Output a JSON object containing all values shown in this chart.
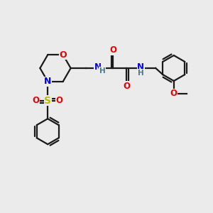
{
  "background_color": "#ebebeb",
  "bond_color": "#1a1a1a",
  "N_color": "#0000ee",
  "O_color": "#ee0000",
  "S_color": "#bbbb00",
  "H_color": "#4a7a8a",
  "line_width": 1.6,
  "figsize": [
    3.0,
    3.0
  ],
  "dpi": 100,
  "xlim": [
    0,
    10
  ],
  "ylim": [
    0,
    10
  ]
}
